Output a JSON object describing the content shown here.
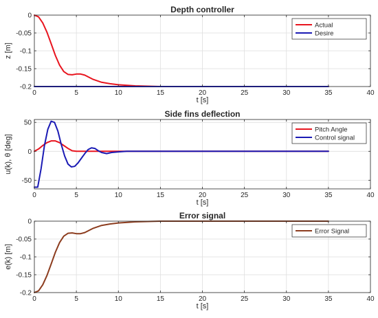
{
  "chart_data": [
    {
      "type": "line",
      "title": "Depth controller",
      "xlabel": "t [s]",
      "ylabel": "z [m]",
      "xlim": [
        0,
        40
      ],
      "ylim": [
        -0.2,
        0
      ],
      "xticks": [
        0,
        5,
        10,
        15,
        20,
        25,
        30,
        35,
        40
      ],
      "yticks": [
        -0.2,
        -0.15,
        -0.1,
        -0.05,
        0
      ],
      "ytick_labels": [
        "-0.2",
        "-0.15",
        "-0.1",
        "-0.05",
        "0"
      ],
      "grid": true,
      "legend_position": "top-right",
      "series": [
        {
          "name": "Actual",
          "color": "#e8141e",
          "x": [
            0,
            0.5,
            1,
            1.5,
            2,
            2.5,
            3,
            3.5,
            4,
            4.5,
            5,
            5.5,
            6,
            7,
            8,
            9,
            10,
            12,
            15,
            20,
            25,
            30,
            35
          ],
          "y": [
            0,
            -0.005,
            -0.022,
            -0.048,
            -0.08,
            -0.113,
            -0.14,
            -0.158,
            -0.166,
            -0.167,
            -0.165,
            -0.165,
            -0.168,
            -0.18,
            -0.188,
            -0.192,
            -0.195,
            -0.198,
            -0.2,
            -0.2,
            -0.2,
            -0.2,
            -0.2
          ]
        },
        {
          "name": "Desire",
          "color": "#1a1ab4",
          "x": [
            0,
            35
          ],
          "y": [
            -0.2,
            -0.2
          ]
        }
      ]
    },
    {
      "type": "line",
      "title": "Side fins deflection",
      "xlabel": "t [s]",
      "ylabel": "u(k), θ [deg]",
      "xlim": [
        0,
        40
      ],
      "ylim": [
        -65,
        55
      ],
      "xticks": [
        0,
        5,
        10,
        15,
        20,
        25,
        30,
        35,
        40
      ],
      "yticks": [
        -50,
        0,
        50
      ],
      "ytick_labels": [
        "-50",
        "0",
        "50"
      ],
      "grid": true,
      "legend_position": "top-right",
      "series": [
        {
          "name": "Pitch Angle",
          "color": "#e8141e",
          "x": [
            0,
            0.5,
            1,
            1.5,
            2,
            2.5,
            3,
            3.5,
            4,
            4.5,
            5,
            5.5,
            6,
            7,
            8,
            9,
            10,
            12,
            15,
            20,
            25,
            30,
            35
          ],
          "y": [
            0,
            4,
            10,
            15,
            18,
            18,
            15,
            10,
            5,
            1,
            0,
            0,
            0,
            0,
            0,
            0,
            0,
            0,
            0,
            0,
            0,
            0,
            0
          ]
        },
        {
          "name": "Control signal",
          "color": "#1a1ab4",
          "x": [
            0,
            0.4,
            0.8,
            1.2,
            1.6,
            2.0,
            2.4,
            2.8,
            3.2,
            3.6,
            4.0,
            4.4,
            4.8,
            5.2,
            5.6,
            6.0,
            6.4,
            6.8,
            7.2,
            7.6,
            8.0,
            8.6,
            9.2,
            10,
            11,
            12,
            15,
            20,
            25,
            30,
            35
          ],
          "y": [
            -62,
            -62,
            -30,
            10,
            38,
            52,
            50,
            35,
            12,
            -8,
            -22,
            -27,
            -26,
            -20,
            -12,
            -4,
            3,
            6,
            5,
            1,
            -2,
            -4,
            -2,
            -1,
            0,
            0,
            0,
            0,
            0,
            0,
            0
          ]
        }
      ]
    },
    {
      "type": "line",
      "title": "Error signal",
      "xlabel": "t [s]",
      "ylabel": "e(k) [m]",
      "xlim": [
        0,
        40
      ],
      "ylim": [
        -0.2,
        0
      ],
      "xticks": [
        0,
        5,
        10,
        15,
        20,
        25,
        30,
        35,
        40
      ],
      "yticks": [
        -0.2,
        -0.15,
        -0.1,
        -0.05,
        0
      ],
      "ytick_labels": [
        "-0.2",
        "-0.15",
        "-0.1",
        "-0.05",
        "0"
      ],
      "grid": true,
      "legend_position": "top-right",
      "series": [
        {
          "name": "Error Signal",
          "color": "#8c3c1e",
          "x": [
            0,
            0.5,
            1,
            1.5,
            2,
            2.5,
            3,
            3.5,
            4,
            4.5,
            5,
            5.5,
            6,
            7,
            8,
            9,
            10,
            12,
            15,
            20,
            25,
            30,
            35
          ],
          "y": [
            -0.2,
            -0.195,
            -0.178,
            -0.152,
            -0.12,
            -0.087,
            -0.06,
            -0.042,
            -0.034,
            -0.033,
            -0.035,
            -0.035,
            -0.032,
            -0.02,
            -0.012,
            -0.008,
            -0.005,
            -0.002,
            0,
            0,
            0,
            0,
            0
          ]
        }
      ]
    }
  ]
}
